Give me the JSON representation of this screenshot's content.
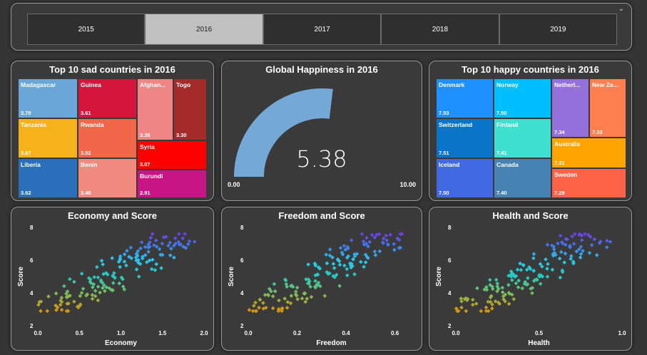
{
  "slicer": {
    "years": [
      "2015",
      "2016",
      "2017",
      "2018",
      "2019"
    ],
    "selected": "2016"
  },
  "sad": {
    "title": "Top 10 sad countries in 2016",
    "items": [
      {
        "name": "Madagascar",
        "value": "3.70",
        "color": "#6aa6d8"
      },
      {
        "name": "Tanzania",
        "value": "3.67",
        "color": "#f5b21a"
      },
      {
        "name": "Liberia",
        "value": "3.62",
        "color": "#2b6fba"
      },
      {
        "name": "Guinea",
        "value": "3.61",
        "color": "#d5153c"
      },
      {
        "name": "Rwanda",
        "value": "3.52",
        "color": "#f2664a"
      },
      {
        "name": "Benin",
        "value": "3.48",
        "color": "#f08a7e"
      },
      {
        "name": "Afghan...",
        "value": "3.36",
        "color": "#f08585"
      },
      {
        "name": "Togo",
        "value": "3.30",
        "color": "#a52a2a"
      },
      {
        "name": "Syria",
        "value": "3.07",
        "color": "#ff0000"
      },
      {
        "name": "Burundi",
        "value": "2.91",
        "color": "#c71585"
      }
    ]
  },
  "happy": {
    "title": "Top 10 happy countries in 2016",
    "items": [
      {
        "name": "Denmark",
        "value": "7.53",
        "color": "#1e90ff"
      },
      {
        "name": "Switzerland",
        "value": "7.51",
        "color": "#0a74c9"
      },
      {
        "name": "Iceland",
        "value": "7.50",
        "color": "#4169e1"
      },
      {
        "name": "Norway",
        "value": "7.50",
        "color": "#00bfff"
      },
      {
        "name": "Finland",
        "value": "7.41",
        "color": "#40e0d0"
      },
      {
        "name": "Canada",
        "value": "7.40",
        "color": "#4682b4"
      },
      {
        "name": "Netherl...",
        "value": "7.34",
        "color": "#9370db"
      },
      {
        "name": "New Ze...",
        "value": "7.33",
        "color": "#ff7f50"
      },
      {
        "name": "Australia",
        "value": "7.31",
        "color": "#ffa500"
      },
      {
        "name": "Sweden",
        "value": "7.29",
        "color": "#ff6347"
      }
    ]
  },
  "gauge": {
    "title": "Global Happiness in 2016",
    "value": 5.38,
    "value_text": "5.38",
    "min": "0.00",
    "max": "10.00",
    "color": "#74a8d6"
  },
  "scatters": [
    {
      "title": "Economy and Score",
      "xlabel": "Economy",
      "ylabel": "Score",
      "xticks": [
        "0.0",
        "0.5",
        "1.0",
        "1.5",
        "2.0"
      ],
      "xmax": 2.0,
      "seed": 11
    },
    {
      "title": "Freedom and Score",
      "xlabel": "Freedom",
      "ylabel": "Score",
      "xticks": [
        "0.0",
        "0.2",
        "0.4",
        "0.6"
      ],
      "xmax": 0.68,
      "seed": 29
    },
    {
      "title": "Health and Score",
      "xlabel": "Health",
      "ylabel": "Score",
      "xticks": [
        "0.0",
        "0.5",
        "1.0"
      ],
      "xmax": 1.0,
      "seed": 47
    }
  ],
  "chart_data": [
    {
      "type": "scatter",
      "title": "Economy and Score",
      "xlabel": "Economy",
      "ylabel": "Score",
      "xlim": [
        0,
        2.0
      ],
      "ylim": [
        2,
        8
      ]
    },
    {
      "type": "scatter",
      "title": "Freedom and Score",
      "xlabel": "Freedom",
      "ylabel": "Score",
      "xlim": [
        0,
        0.68
      ],
      "ylim": [
        2,
        8
      ]
    },
    {
      "type": "scatter",
      "title": "Health and Score",
      "xlabel": "Health",
      "ylabel": "Score",
      "xlim": [
        0,
        1.0
      ],
      "ylim": [
        2,
        8
      ]
    }
  ]
}
